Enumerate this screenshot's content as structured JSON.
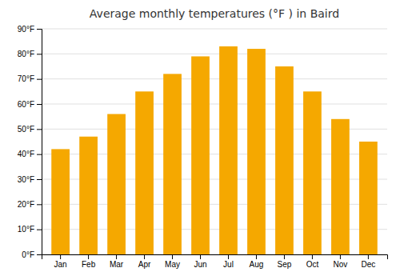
{
  "chart_data": {
    "type": "bar",
    "title": "Average monthly temperatures (°F ) in Baird",
    "categories": [
      "Jan",
      "Feb",
      "Mar",
      "Apr",
      "May",
      "Jun",
      "Jul",
      "Aug",
      "Sep",
      "Oct",
      "Nov",
      "Dec"
    ],
    "values": [
      42,
      47,
      56,
      65,
      72,
      79,
      83,
      82,
      75,
      65,
      54,
      45
    ],
    "color": "#F5A800",
    "ylim": [
      0,
      90
    ],
    "yticks": [
      {
        "value": 0,
        "label": "0°F"
      },
      {
        "value": 10,
        "label": "10°F"
      },
      {
        "value": 20,
        "label": "20°F"
      },
      {
        "value": 30,
        "label": "30°F"
      },
      {
        "value": 40,
        "label": "40°F"
      },
      {
        "value": 50,
        "label": "50°F"
      },
      {
        "value": 60,
        "label": "60°F"
      },
      {
        "value": 70,
        "label": "70°F"
      },
      {
        "value": 80,
        "label": "80°F"
      },
      {
        "value": 90,
        "label": "90°F"
      }
    ],
    "grid": true
  }
}
